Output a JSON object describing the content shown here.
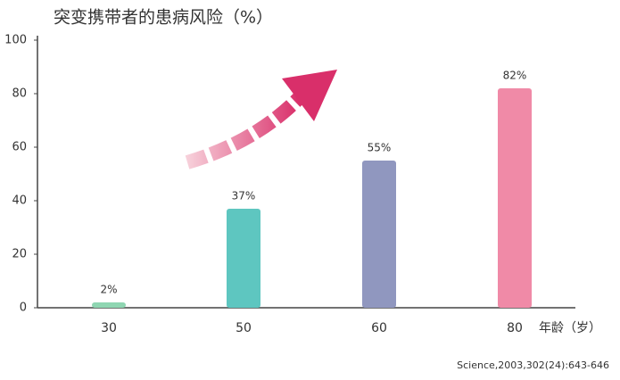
{
  "chart_data": {
    "type": "bar",
    "title": "突变携带者的患病风险（%）",
    "x_label": "年龄（岁）",
    "source": "Science,2003,302(24):643-646",
    "categories": [
      "30",
      "50",
      "60",
      "80"
    ],
    "values": [
      2,
      37,
      55,
      82
    ],
    "value_labels": [
      "2%",
      "37%",
      "55%",
      "82%"
    ],
    "colors": [
      "#8fd6b2",
      "#5ec6c0",
      "#9097bf",
      "#f08aa7"
    ],
    "ylim": [
      0,
      100
    ],
    "yticks": [
      0,
      20,
      40,
      60,
      80,
      100
    ],
    "grid": false
  }
}
